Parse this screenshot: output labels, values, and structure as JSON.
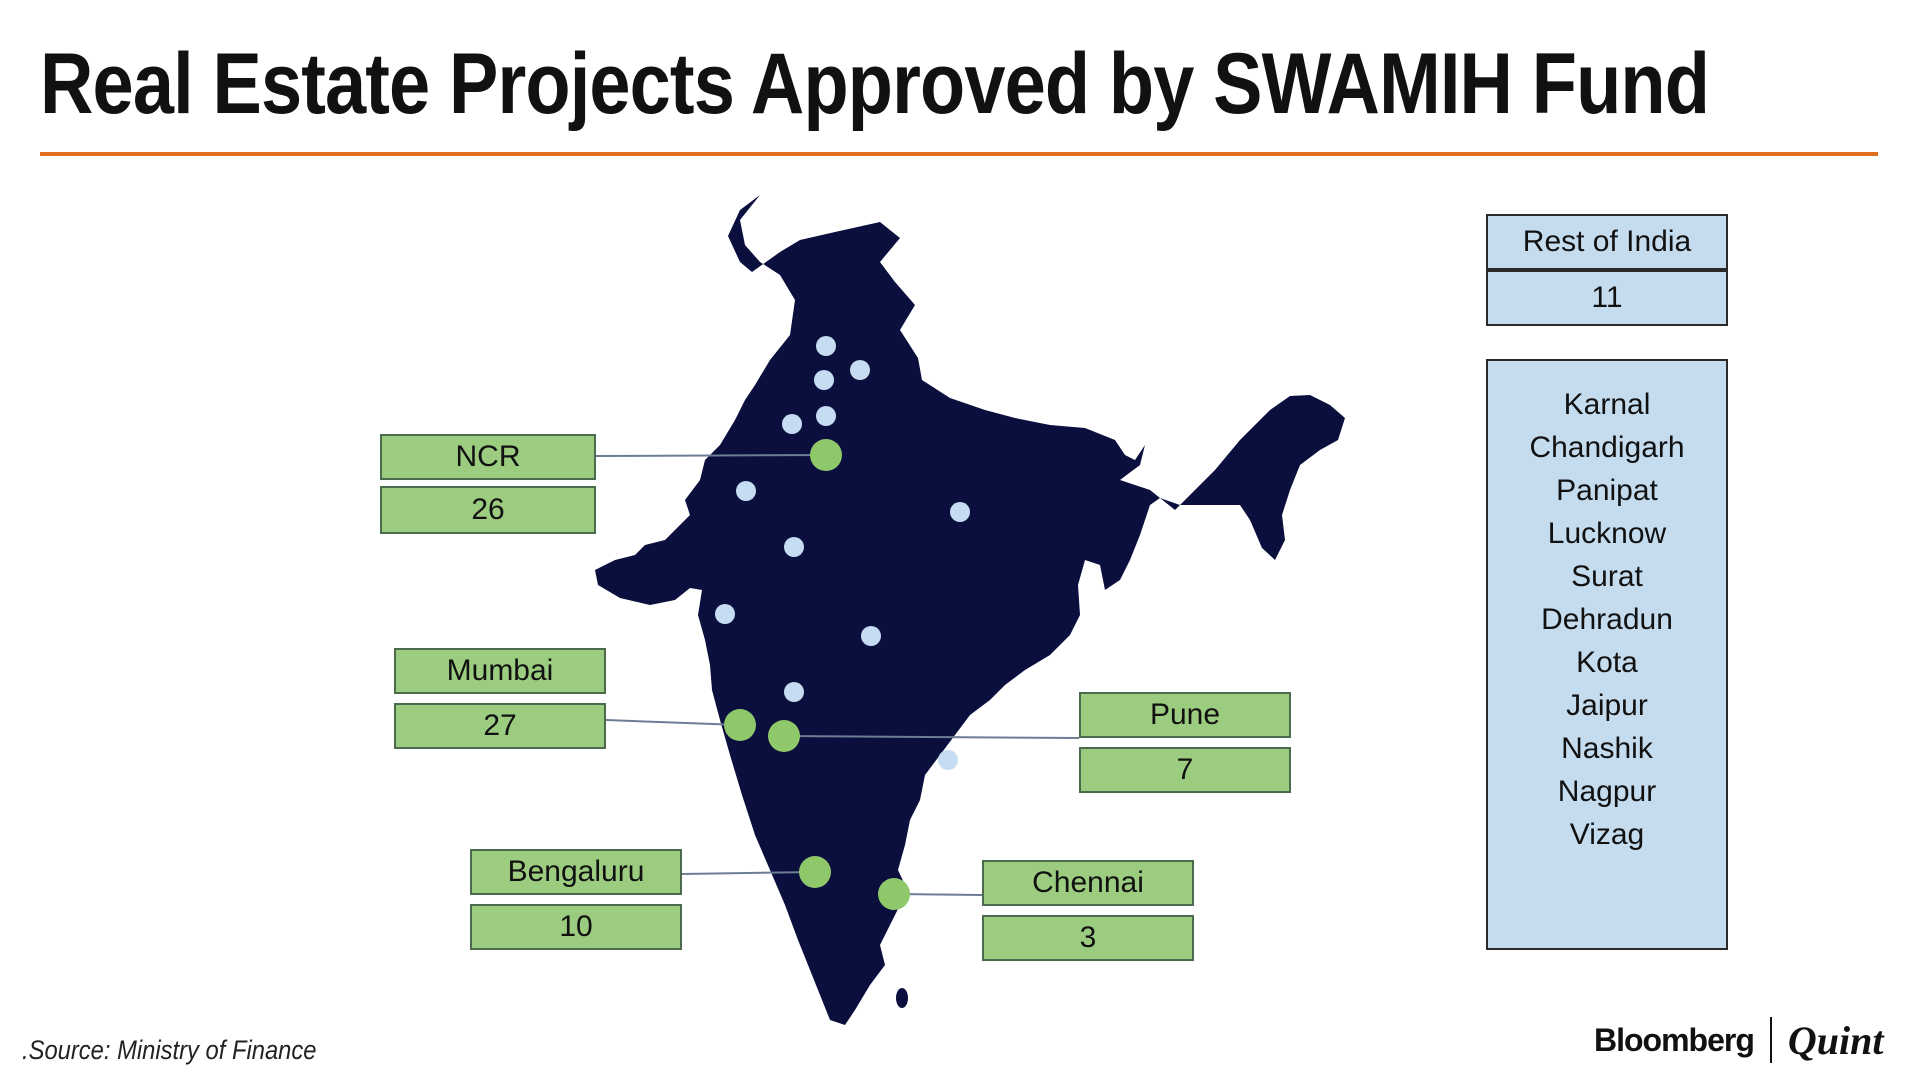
{
  "title": "Real Estate Projects Approved by SWAMIH Fund",
  "colors": {
    "rule": "#e0701e",
    "map_fill": "#0b0f3d",
    "major_city_dot": "#8fc86a",
    "other_city_dot": "#c5dcf3",
    "label_box": "#9ccc80",
    "rest_box": "#c5dcef"
  },
  "major_cities": [
    {
      "name": "NCR",
      "count": "26"
    },
    {
      "name": "Mumbai",
      "count": "27"
    },
    {
      "name": "Pune",
      "count": "7"
    },
    {
      "name": "Bengaluru",
      "count": "10"
    },
    {
      "name": "Chennai",
      "count": "3"
    }
  ],
  "rest_of_india": {
    "label": "Rest of India",
    "count": "11",
    "cities": [
      "Karnal",
      "Chandigarh",
      "Panipat",
      "Lucknow",
      "Surat",
      "Dehradun",
      "Kota",
      "Jaipur",
      "Nashik",
      "Nagpur",
      "Vizag"
    ]
  },
  "source": ".Source: Ministry of Finance",
  "brand": {
    "left": "Bloomberg",
    "right": "Quint"
  }
}
